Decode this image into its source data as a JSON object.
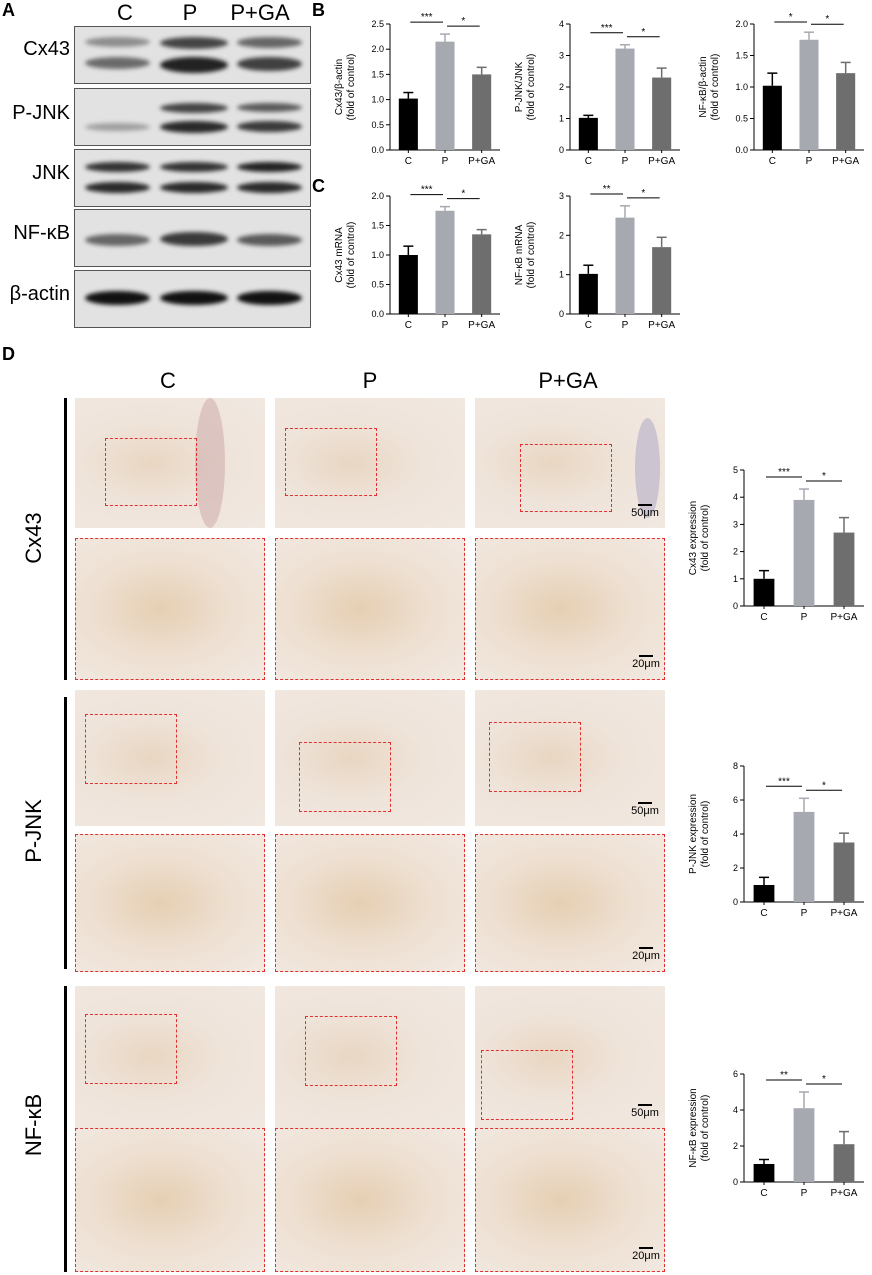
{
  "panels": {
    "A": "A",
    "B": "B",
    "C": "C",
    "D": "D"
  },
  "blot": {
    "columns": [
      "C",
      "P",
      "P+GA"
    ],
    "rows": [
      "Cx43",
      "P-JNK",
      "JNK",
      "NF-κB",
      "β-actin"
    ]
  },
  "ihc": {
    "columns": [
      "C",
      "P",
      "P+GA"
    ],
    "rows": [
      "Cx43",
      "P-JNK",
      "NF-κB"
    ],
    "scale_low": "50μm",
    "scale_high": "20μm"
  },
  "chart_data": [
    {
      "id": "b1",
      "type": "bar",
      "categories": [
        "C",
        "P",
        "P+GA"
      ],
      "values": [
        1.02,
        2.15,
        1.5
      ],
      "errors": [
        0.12,
        0.15,
        0.14
      ],
      "ylabel": [
        "Cx43/β-actin",
        "(fold of control)"
      ],
      "ylim": [
        0,
        2.5
      ],
      "yticks": [
        0,
        0.5,
        1.0,
        1.5,
        2.0,
        2.5
      ],
      "yticklabels": [
        "0.0",
        "0.5",
        "1.0",
        "1.5",
        "2.0",
        "2.5"
      ],
      "sig": [
        {
          "from": 0,
          "to": 1,
          "label": "***"
        },
        {
          "from": 1,
          "to": 2,
          "label": "*"
        }
      ]
    },
    {
      "id": "b2",
      "type": "bar",
      "categories": [
        "C",
        "P",
        "P+GA"
      ],
      "values": [
        1.02,
        3.22,
        2.3
      ],
      "errors": [
        0.08,
        0.12,
        0.3
      ],
      "ylabel": [
        "P-JNK/JNK",
        "(fold of control)"
      ],
      "ylim": [
        0,
        4
      ],
      "yticks": [
        0,
        1,
        2,
        3,
        4
      ],
      "yticklabels": [
        "0",
        "1",
        "2",
        "3",
        "4"
      ],
      "sig": [
        {
          "from": 0,
          "to": 1,
          "label": "***"
        },
        {
          "from": 1,
          "to": 2,
          "label": "*"
        }
      ]
    },
    {
      "id": "b3",
      "type": "bar",
      "categories": [
        "C",
        "P",
        "P+GA"
      ],
      "values": [
        1.02,
        1.75,
        1.22
      ],
      "errors": [
        0.2,
        0.12,
        0.17
      ],
      "ylabel": [
        "NF-κB/β-actin",
        "(fold of control)"
      ],
      "ylim": [
        0,
        2.0
      ],
      "yticks": [
        0,
        0.5,
        1.0,
        1.5,
        2.0
      ],
      "yticklabels": [
        "0.0",
        "0.5",
        "1.0",
        "1.5",
        "2.0"
      ],
      "sig": [
        {
          "from": 0,
          "to": 1,
          "label": "*"
        },
        {
          "from": 1,
          "to": 2,
          "label": "*"
        }
      ]
    },
    {
      "id": "c1",
      "type": "bar",
      "categories": [
        "C",
        "P",
        "P+GA"
      ],
      "values": [
        1.0,
        1.75,
        1.35
      ],
      "errors": [
        0.15,
        0.07,
        0.08
      ],
      "ylabel": [
        "Cx43 mRNA",
        "(fold of control)"
      ],
      "ylim": [
        0,
        2.0
      ],
      "yticks": [
        0,
        0.5,
        1.0,
        1.5,
        2.0
      ],
      "yticklabels": [
        "0.0",
        "0.5",
        "1.0",
        "1.5",
        "2.0"
      ],
      "sig": [
        {
          "from": 0,
          "to": 1,
          "label": "***"
        },
        {
          "from": 1,
          "to": 2,
          "label": "*"
        }
      ]
    },
    {
      "id": "c2",
      "type": "bar",
      "categories": [
        "C",
        "P",
        "P+GA"
      ],
      "values": [
        1.02,
        2.45,
        1.7
      ],
      "errors": [
        0.22,
        0.3,
        0.25
      ],
      "ylabel": [
        "NF-κB mRNA",
        "(fold of control)"
      ],
      "ylim": [
        0,
        3
      ],
      "yticks": [
        0,
        1,
        2,
        3
      ],
      "yticklabels": [
        "0",
        "1",
        "2",
        "3"
      ],
      "sig": [
        {
          "from": 0,
          "to": 1,
          "label": "**"
        },
        {
          "from": 1,
          "to": 2,
          "label": "*"
        }
      ]
    },
    {
      "id": "d1",
      "type": "bar",
      "categories": [
        "C",
        "P",
        "P+GA"
      ],
      "values": [
        1.0,
        3.9,
        2.7
      ],
      "errors": [
        0.3,
        0.4,
        0.55
      ],
      "ylabel": [
        "Cx43 expression",
        "(fold of control)"
      ],
      "ylim": [
        0,
        5
      ],
      "yticks": [
        0,
        1,
        2,
        3,
        4,
        5
      ],
      "yticklabels": [
        "0",
        "1",
        "2",
        "3",
        "4",
        "5"
      ],
      "sig": [
        {
          "from": 0,
          "to": 1,
          "label": "***"
        },
        {
          "from": 1,
          "to": 2,
          "label": "*"
        }
      ]
    },
    {
      "id": "d2",
      "type": "bar",
      "categories": [
        "C",
        "P",
        "P+GA"
      ],
      "values": [
        1.0,
        5.3,
        3.5
      ],
      "errors": [
        0.45,
        0.8,
        0.55
      ],
      "ylabel": [
        "P-JNK expression",
        "(fold of control)"
      ],
      "ylim": [
        0,
        8
      ],
      "yticks": [
        0,
        2,
        4,
        6,
        8
      ],
      "yticklabels": [
        "0",
        "2",
        "4",
        "6",
        "8"
      ],
      "sig": [
        {
          "from": 0,
          "to": 1,
          "label": "***"
        },
        {
          "from": 1,
          "to": 2,
          "label": "*"
        }
      ]
    },
    {
      "id": "d3",
      "type": "bar",
      "categories": [
        "C",
        "P",
        "P+GA"
      ],
      "values": [
        1.0,
        4.1,
        2.1
      ],
      "errors": [
        0.25,
        0.9,
        0.7
      ],
      "ylabel": [
        "NF-κB expression",
        "(fold of control)"
      ],
      "ylim": [
        0,
        6
      ],
      "yticks": [
        0,
        2,
        4,
        6
      ],
      "yticklabels": [
        "0",
        "2",
        "4",
        "6"
      ],
      "sig": [
        {
          "from": 0,
          "to": 1,
          "label": "**"
        },
        {
          "from": 1,
          "to": 2,
          "label": "*"
        }
      ]
    }
  ]
}
